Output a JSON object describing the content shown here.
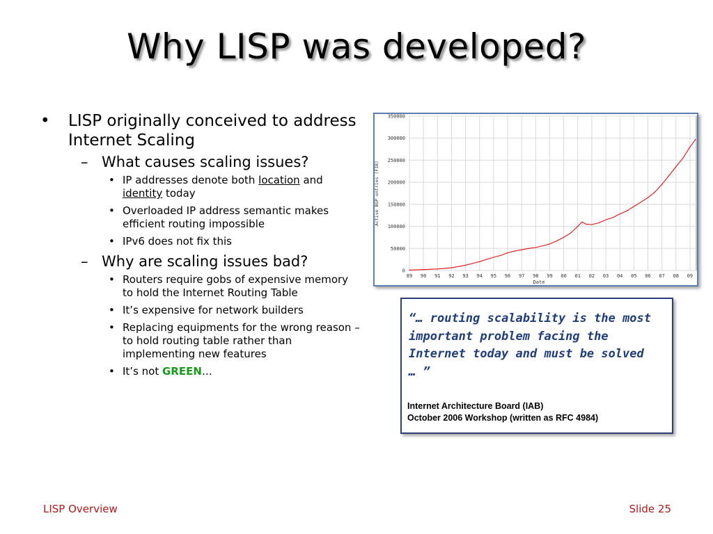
{
  "slide": {
    "title": "Why LISP was developed?",
    "footer_left": "LISP Overview",
    "footer_right": "Slide 25"
  },
  "bullets": {
    "b1": {
      "pre": "LISP originally conceived to address Internet Scaling"
    },
    "b2a": {
      "text": "What causes scaling issues?"
    },
    "b2a_items": [
      {
        "pre": "IP addresses denote both ",
        "u1": "location",
        "mid": " and ",
        "u2": "identity",
        "post": " today"
      },
      {
        "text": "Overloaded IP address semantic makes efficient routing impossible"
      },
      {
        "text": "IPv6 does not fix this"
      }
    ],
    "b2b": {
      "text": "Why are scaling issues bad?"
    },
    "b2b_items": [
      {
        "text": "Routers require gobs of expensive memory to hold the Internet Routing Table"
      },
      {
        "text": "It’s expensive for network builders"
      },
      {
        "text": "Replacing equipments for the wrong reason – to hold routing table rather than implementing new features"
      },
      {
        "pre": "It’s not ",
        "green": "GREEN",
        "post": "…"
      }
    ]
  },
  "quote": {
    "open": "“…",
    "body": "routing scalability is the most important problem facing the Internet today and must be solved …",
    "close": "”",
    "attrib_line1": "Internet Architecture Board (IAB)",
    "attrib_line2": "October 2006 Workshop (written as RFC 4984)"
  },
  "colors": {
    "line": "#e01010",
    "grid": "#d8d8d8",
    "frame": "#5d7eb0",
    "quote_text": "#1f3d7a",
    "footer": "#b01818",
    "green": "#1a9a1a"
  },
  "chart_data": {
    "type": "line",
    "xlabel": "Date",
    "ylabel": "Active BGP entries (FIB)",
    "x_ticks": [
      "89",
      "90",
      "91",
      "92",
      "93",
      "94",
      "95",
      "96",
      "97",
      "98",
      "99",
      "00",
      "01",
      "02",
      "03",
      "04",
      "05",
      "06",
      "07",
      "08",
      "09"
    ],
    "y_ticks": [
      "0",
      "50000",
      "100000",
      "150000",
      "200000",
      "250000",
      "300000",
      "350000"
    ],
    "ylim": [
      0,
      350000
    ],
    "grid": true,
    "series": [
      {
        "x": [
          1989.0,
          1990.0,
          1991.0,
          1992.0,
          1993.0,
          1993.5,
          1994.0,
          1994.5,
          1995.0,
          1995.5,
          1996.0,
          1996.5,
          1997.0,
          1997.5,
          1998.0,
          1998.5,
          1999.0,
          1999.5,
          2000.0,
          2000.5,
          2001.0,
          2001.3,
          2001.6,
          2002.0,
          2002.5,
          2003.0,
          2003.5,
          2004.0,
          2004.5,
          2005.0,
          2005.5,
          2006.0,
          2006.5,
          2007.0,
          2007.5,
          2008.0,
          2008.5,
          2009.0,
          2009.4
        ],
        "y": [
          1000,
          2000,
          3500,
          6000,
          12000,
          16000,
          20000,
          25000,
          30000,
          34000,
          40000,
          44000,
          47000,
          50000,
          52000,
          56000,
          60000,
          67000,
          75000,
          85000,
          100000,
          110000,
          105000,
          104000,
          108000,
          115000,
          120000,
          128000,
          135000,
          145000,
          155000,
          165000,
          178000,
          195000,
          215000,
          235000,
          255000,
          280000,
          297000
        ]
      }
    ]
  }
}
